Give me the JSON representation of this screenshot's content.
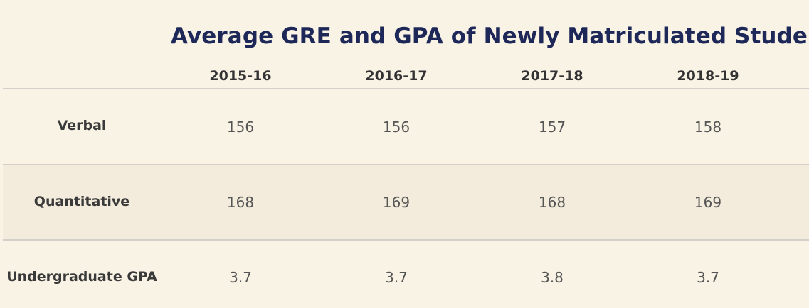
{
  "chart_data": {
    "type": "table",
    "title": "Average GRE and GPA of Newly Matriculated Students",
    "columns": [
      "2015-16",
      "2016-17",
      "2017-18",
      "2018-19"
    ],
    "rows": [
      {
        "label": "Verbal",
        "values": [
          "156",
          "156",
          "157",
          "158"
        ]
      },
      {
        "label": "Quantitative",
        "values": [
          "168",
          "169",
          "168",
          "169"
        ]
      },
      {
        "label": "Undergraduate GPA",
        "values": [
          "3.7",
          "3.7",
          "3.8",
          "3.7"
        ]
      }
    ]
  },
  "colors": {
    "background": "#f9f3e5",
    "band": "#f3ecdc",
    "title": "#1d2858",
    "divider": "#d3d0ca"
  }
}
